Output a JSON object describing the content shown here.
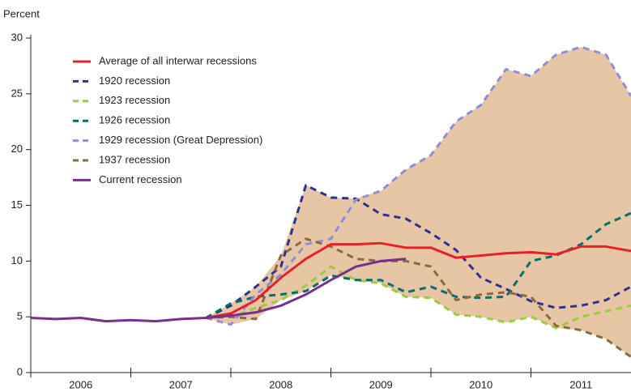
{
  "chart_data": {
    "type": "line",
    "y_axis_label": "Percent",
    "x": [
      2006,
      2006.25,
      2006.5,
      2006.75,
      2007,
      2007.25,
      2007.5,
      2007.75,
      2008,
      2008.25,
      2008.5,
      2008.75,
      2009,
      2009.25,
      2009.5,
      2009.75,
      2010,
      2010.25,
      2010.5,
      2010.75,
      2011,
      2011.25,
      2011.5,
      2011.75,
      2012
    ],
    "xlim": [
      2006,
      2012
    ],
    "xticks": [
      {
        "value": 2006.5,
        "label": "2006"
      },
      {
        "value": 2007.5,
        "label": "2007"
      },
      {
        "value": 2008.5,
        "label": "2008"
      },
      {
        "value": 2009.5,
        "label": "2009"
      },
      {
        "value": 2010.5,
        "label": "2010"
      },
      {
        "value": 2011.5,
        "label": "2011"
      }
    ],
    "xtick_marks": [
      2006,
      2007,
      2008,
      2009,
      2010,
      2011
    ],
    "ylim": [
      0,
      30
    ],
    "yticks": [
      0,
      5,
      10,
      15,
      20,
      25,
      30
    ],
    "band_color": "#e6c6a4",
    "series": [
      {
        "name": "Average of all interwar recessions",
        "color": "#e8202a",
        "dash": false,
        "values": [
          null,
          null,
          null,
          null,
          null,
          null,
          null,
          4.9,
          5.3,
          6.5,
          8.5,
          10.2,
          11.5,
          11.5,
          11.6,
          11.2,
          11.2,
          10.3,
          10.5,
          10.7,
          10.8,
          10.6,
          11.3,
          11.3,
          10.9
        ]
      },
      {
        "name": "1920 recession",
        "color": "#2e3192",
        "dash": true,
        "values": [
          null,
          null,
          null,
          null,
          null,
          null,
          null,
          4.9,
          6.0,
          7.7,
          9.5,
          16.8,
          15.7,
          15.6,
          14.2,
          13.8,
          12.5,
          11.0,
          8.5,
          7.5,
          6.4,
          5.8,
          6.0,
          6.5,
          7.7
        ]
      },
      {
        "name": "1923 recession",
        "color": "#9acd3c",
        "dash": true,
        "values": [
          null,
          null,
          null,
          null,
          null,
          null,
          null,
          4.9,
          5.0,
          5.8,
          6.5,
          7.8,
          9.5,
          8.3,
          8.0,
          6.8,
          6.7,
          5.2,
          5.0,
          4.5,
          5.0,
          4.0,
          5.0,
          5.5,
          6.0
        ]
      },
      {
        "name": "1926 recession",
        "color": "#00706b",
        "dash": true,
        "values": [
          null,
          null,
          null,
          null,
          null,
          null,
          null,
          4.9,
          6.2,
          6.8,
          7.0,
          7.3,
          8.7,
          8.3,
          8.3,
          7.2,
          7.7,
          6.8,
          6.7,
          6.8,
          10.0,
          10.5,
          11.5,
          13.3,
          14.3
        ]
      },
      {
        "name": "1929 recession (Great Depression)",
        "color": "#8f8fd8",
        "dash": true,
        "values": [
          null,
          null,
          null,
          null,
          null,
          null,
          null,
          4.9,
          4.3,
          7.0,
          8.8,
          11.5,
          12.0,
          15.5,
          16.3,
          18.2,
          19.5,
          22.5,
          24.0,
          27.2,
          26.6,
          28.5,
          29.2,
          28.5,
          24.8
        ]
      },
      {
        "name": "1937 recession",
        "color": "#8b6b3d",
        "dash": true,
        "values": [
          null,
          null,
          null,
          null,
          null,
          null,
          null,
          4.9,
          5.0,
          4.8,
          10.5,
          12.0,
          11.3,
          10.2,
          10.0,
          10.0,
          9.5,
          6.5,
          7.0,
          7.2,
          6.8,
          4.2,
          3.8,
          3.0,
          1.4
        ]
      },
      {
        "name": "Current recession",
        "color": "#7b2e8e",
        "dash": false,
        "values": [
          4.9,
          4.8,
          4.9,
          4.6,
          4.7,
          4.6,
          4.8,
          4.9,
          5.1,
          5.4,
          6.0,
          7.0,
          8.3,
          9.5,
          10.0,
          10.2,
          null,
          null,
          null,
          null,
          null,
          null,
          null,
          null,
          null
        ]
      }
    ]
  }
}
